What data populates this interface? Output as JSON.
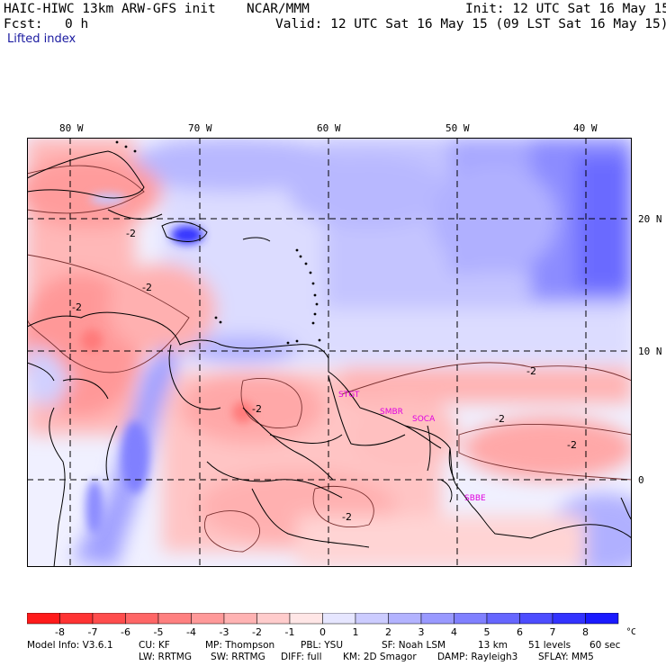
{
  "header": {
    "model_title": "HAIC-HIWC 13km ARW-GFS init",
    "org": "NCAR/MMM",
    "init": "Init: 12 UTC Sat 16 May 15",
    "fcst_label": "Fcst:",
    "fcst_value": "0 h",
    "valid": "Valid: 12 UTC Sat 16 May 15 (09 LST Sat 16 May 15)",
    "field": "Lifted index"
  },
  "map": {
    "lon_labels": [
      "80 W",
      "70 W",
      "60 W",
      "50 W",
      "40 W"
    ],
    "lat_labels": [
      "20 N",
      "10 N",
      "0"
    ],
    "contour_labels": [
      "-2",
      "-2",
      "-2",
      "-2",
      "-2",
      "-2",
      "-2",
      "-2"
    ],
    "stations": [
      "STGT",
      "SMBR",
      "SOCA",
      "SBBE"
    ],
    "colors": {
      "coast": "#000000",
      "grid": "#000000",
      "station": "#e000e0"
    }
  },
  "legend": {
    "ticks": [
      "-8",
      "-7",
      "-6",
      "-5",
      "-4",
      "-3",
      "-2",
      "-1",
      "0",
      "1",
      "2",
      "3",
      "4",
      "5",
      "6",
      "7",
      "8"
    ],
    "unit": "°C",
    "colors": [
      "#ff1a1a",
      "#ff3333",
      "#ff4d4d",
      "#ff6666",
      "#ff8080",
      "#ff9999",
      "#ffb3b3",
      "#ffcccc",
      "#ffe6e6",
      "#e6e6ff",
      "#ccccff",
      "#b3b3ff",
      "#9999ff",
      "#8080ff",
      "#6666ff",
      "#4d4dff",
      "#3333ff",
      "#1a1aff"
    ]
  },
  "footer": {
    "line1": [
      "Model Info: V3.6.1",
      "CU: KF",
      "MP: Thompson",
      "PBL: YSU",
      "SF: Noah LSM",
      "13 km",
      "51 levels",
      "60 sec"
    ],
    "line2": [
      "LW: RRTMG",
      "SW: RRTMG",
      "DIFF: full",
      "KM: 2D Smagor",
      "DAMP: Rayleigh3",
      "SFLAY: MM5"
    ]
  }
}
